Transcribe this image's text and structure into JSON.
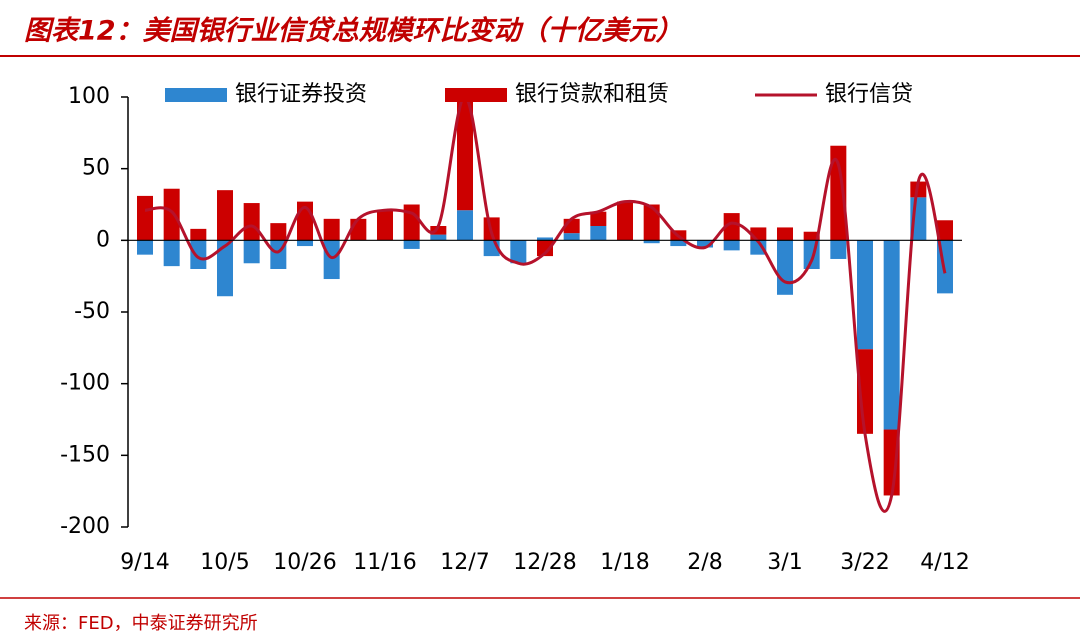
{
  "chart_data": {
    "type": "bar-line",
    "title": "图表12：美国银行业信贷总规模环比变动（十亿美元）",
    "source": "来源：FED，中泰证券研究所",
    "categories": [
      "9/14",
      null,
      null,
      "10/5",
      null,
      null,
      "10/26",
      null,
      null,
      "11/16",
      null,
      null,
      "12/7",
      null,
      null,
      "12/28",
      null,
      null,
      "1/18",
      null,
      null,
      "2/8",
      null,
      null,
      "3/1",
      null,
      null,
      "3/22",
      null,
      null,
      "4/12"
    ],
    "series": [
      {
        "name": "银行证券投资",
        "type": "bar",
        "color": "#2e86d0",
        "values": [
          -10,
          -18,
          -20,
          -39,
          -16,
          -20,
          -4,
          -27,
          0,
          0,
          -6,
          4,
          21,
          -11,
          -16,
          2,
          5,
          10,
          0,
          -2,
          -4,
          -5,
          -7,
          -10,
          -38,
          -20,
          -13,
          -76,
          -132,
          30,
          -37
        ]
      },
      {
        "name": "银行贷款和租赁",
        "type": "bar",
        "color": "#cc0000",
        "values": [
          31,
          36,
          8,
          35,
          26,
          12,
          27,
          15,
          15,
          21,
          25,
          6,
          79,
          16,
          0,
          -11,
          10,
          10,
          27,
          25,
          7,
          0,
          19,
          9,
          9,
          6,
          66,
          -59,
          -46,
          11,
          14
        ]
      },
      {
        "name": "银行信贷",
        "type": "line",
        "color": "#b5122b",
        "values": [
          21,
          20,
          -12,
          -4,
          10,
          -8,
          23,
          -12,
          15,
          21,
          19,
          10,
          100,
          5,
          -16,
          -9,
          15,
          20,
          27,
          23,
          3,
          -5,
          12,
          -1,
          -29,
          -14,
          53,
          -135,
          -178,
          41,
          -23
        ]
      }
    ],
    "ylim": [
      -200,
      100
    ],
    "yticks": [
      -200,
      -150,
      -100,
      -50,
      0,
      50,
      100
    ],
    "stacked": true
  }
}
